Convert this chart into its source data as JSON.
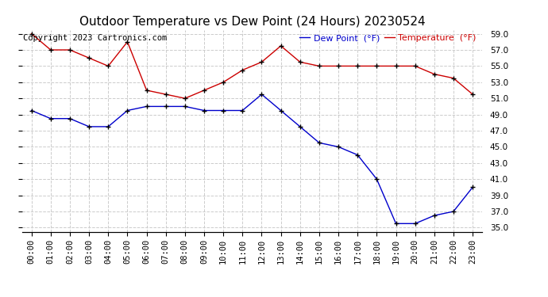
{
  "title": "Outdoor Temperature vs Dew Point (24 Hours) 20230524",
  "copyright": "Copyright 2023 Cartronics.com",
  "legend_dew": "Dew Point  (°F)",
  "legend_temp": "Temperature  (°F)",
  "hours": [
    "00:00",
    "01:00",
    "02:00",
    "03:00",
    "04:00",
    "05:00",
    "06:00",
    "07:00",
    "08:00",
    "09:00",
    "10:00",
    "11:00",
    "12:00",
    "13:00",
    "14:00",
    "15:00",
    "16:00",
    "17:00",
    "18:00",
    "19:00",
    "20:00",
    "21:00",
    "22:00",
    "23:00"
  ],
  "temperature": [
    59.0,
    57.0,
    57.0,
    56.0,
    55.0,
    58.0,
    52.0,
    51.5,
    51.0,
    52.0,
    53.0,
    54.5,
    55.5,
    57.5,
    55.5,
    55.0,
    55.0,
    55.0,
    55.0,
    55.0,
    55.0,
    54.0,
    53.5,
    51.5
  ],
  "dew_point": [
    49.5,
    48.5,
    48.5,
    47.5,
    47.5,
    49.5,
    50.0,
    50.0,
    50.0,
    49.5,
    49.5,
    49.5,
    51.5,
    49.5,
    47.5,
    45.5,
    45.0,
    44.0,
    41.0,
    35.5,
    35.5,
    36.5,
    37.0,
    40.0
  ],
  "temp_color": "#cc0000",
  "dew_color": "#0000cc",
  "marker_color": "#000000",
  "ylim_min": 34.5,
  "ylim_max": 59.5,
  "yticks": [
    35.0,
    37.0,
    39.0,
    41.0,
    43.0,
    45.0,
    47.0,
    49.0,
    51.0,
    53.0,
    55.0,
    57.0,
    59.0
  ],
  "background_color": "#ffffff",
  "grid_color": "#cccccc",
  "title_fontsize": 11,
  "tick_fontsize": 7.5,
  "legend_fontsize": 8,
  "copyright_fontsize": 7.5
}
